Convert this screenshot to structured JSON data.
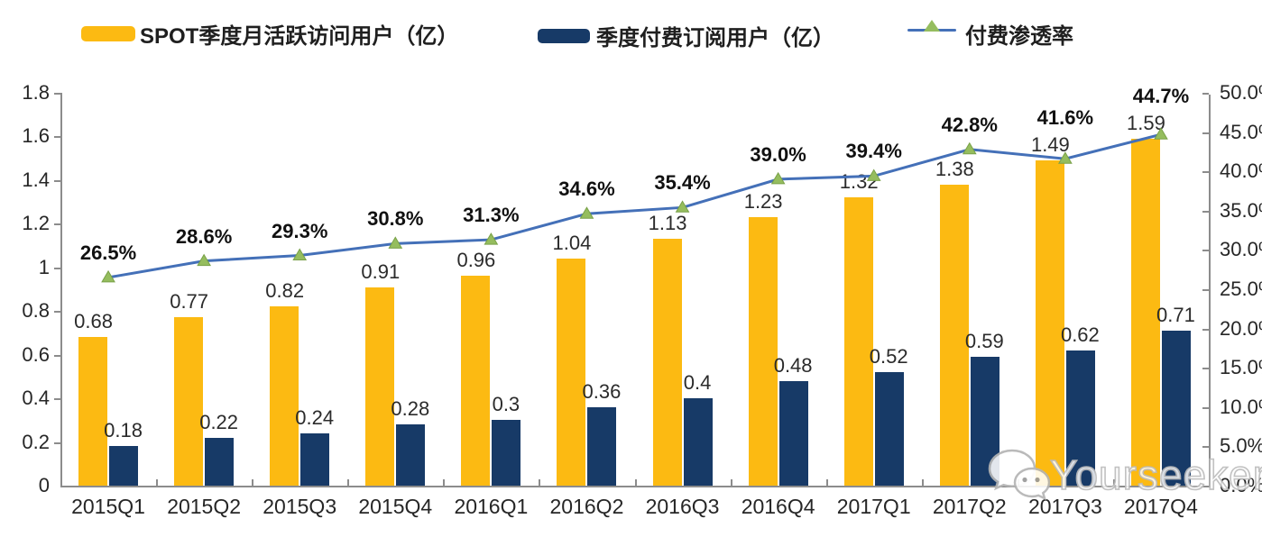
{
  "legend": [
    {
      "label": "SPOT季度月活跃访问用户（亿）",
      "swatch": "bar",
      "color": "#FCBA12"
    },
    {
      "label": "季度付费订阅用户（亿）",
      "swatch": "bar",
      "color": "#173A67"
    },
    {
      "label": "付费渗透率",
      "swatch": "line-triangle-marker",
      "color": "#4470B8",
      "marker_color": "#95BD5E"
    }
  ],
  "watermark": {
    "text": "Yourseeker",
    "icon": "wechat-icon"
  },
  "colors": {
    "mau_bar": "#FCBA12",
    "subs_bar": "#173A67",
    "line": "#4470B8",
    "marker_fill": "#95BD5E",
    "marker_stroke": "#79A148",
    "axis": "#8c8c8c"
  },
  "chart_data": {
    "type": "bar",
    "subtype": "grouped-bars-with-line-combo",
    "categories": [
      "2015Q1",
      "2015Q2",
      "2015Q3",
      "2015Q4",
      "2016Q1",
      "2016Q2",
      "2016Q3",
      "2016Q4",
      "2017Q1",
      "2017Q2",
      "2017Q3",
      "2017Q4"
    ],
    "series": [
      {
        "name": "SPOT季度月活跃访问用户（亿）",
        "type": "bar",
        "axis": "left",
        "values": [
          0.68,
          0.77,
          0.82,
          0.91,
          0.96,
          1.04,
          1.13,
          1.23,
          1.32,
          1.38,
          1.49,
          1.59
        ],
        "labels": [
          "0.68",
          "0.77",
          "0.82",
          "0.91",
          "0.96",
          "1.04",
          "1.13",
          "1.23",
          "1.32",
          "1.38",
          "1.49",
          "1.59"
        ]
      },
      {
        "name": "季度付费订阅用户（亿）",
        "type": "bar",
        "axis": "left",
        "values": [
          0.18,
          0.22,
          0.24,
          0.28,
          0.3,
          0.36,
          0.4,
          0.48,
          0.52,
          0.59,
          0.62,
          0.71
        ],
        "labels": [
          "0.18",
          "0.22",
          "0.24",
          "0.28",
          "0.3",
          "0.36",
          "0.4",
          "0.48",
          "0.52",
          "0.59",
          "0.62",
          "0.71"
        ]
      },
      {
        "name": "付费渗透率",
        "type": "line",
        "axis": "right",
        "values": [
          26.5,
          28.6,
          29.3,
          30.8,
          31.3,
          34.6,
          35.4,
          39.0,
          39.4,
          42.8,
          41.6,
          44.7
        ],
        "labels": [
          "26.5%",
          "28.6%",
          "29.3%",
          "30.8%",
          "31.3%",
          "34.6%",
          "35.4%",
          "39.0%",
          "39.4%",
          "42.8%",
          "41.6%",
          "44.7%"
        ]
      }
    ],
    "left_axis": {
      "min": 0,
      "max": 1.8,
      "step": 0.2,
      "ticks": [
        "0",
        "0.2",
        "0.4",
        "0.6",
        "0.8",
        "1",
        "1.2",
        "1.4",
        "1.6",
        "1.8"
      ]
    },
    "right_axis": {
      "min": 0,
      "max": 50,
      "step": 5,
      "ticks": [
        "0.0%",
        "5.0%",
        "10.0%",
        "15.0%",
        "20.0%",
        "25.0%",
        "30.0%",
        "35.0%",
        "40.0%",
        "45.0%",
        "50.0%"
      ]
    },
    "grid": false,
    "legend_position": "top"
  }
}
